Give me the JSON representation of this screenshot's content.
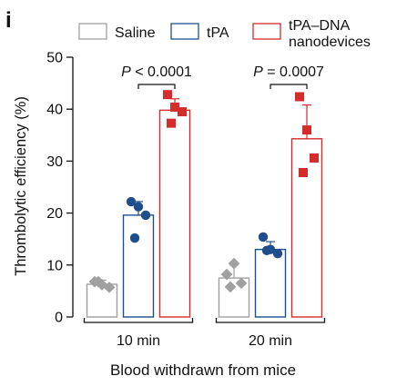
{
  "panel_label": "i",
  "chart_data": {
    "type": "bar",
    "categories": [
      "10 min",
      "20 min"
    ],
    "xlabel": "Blood withdrawn from mice",
    "ylabel": "Thrombolytic efficiency (%)",
    "ylim": [
      0,
      50
    ],
    "yticks": [
      0,
      10,
      20,
      30,
      40,
      50
    ],
    "legend_position": "top",
    "series": [
      {
        "name": "Saline",
        "color": "#a0a0a0",
        "marker": "diamond",
        "values": [
          6.3,
          7.5
        ],
        "errors": [
          0.8,
          2.5
        ],
        "points": [
          [
            6.8,
            6.2,
            5.7,
            6.8
          ],
          [
            8.2,
            10.3,
            6.5,
            5.8
          ]
        ]
      },
      {
        "name": "tPA",
        "color": "#1f4e8c",
        "marker": "circle",
        "values": [
          19.6,
          13.0
        ],
        "errors": [
          2.6,
          1.5
        ],
        "points": [
          [
            22.2,
            21.2,
            19.6,
            15.2
          ],
          [
            15.4,
            13.0,
            12.2,
            12.8
          ]
        ]
      },
      {
        "name": "tPA–DNA nanodevices",
        "color": "#d52b2b",
        "marker": "square",
        "values": [
          39.8,
          34.3
        ],
        "errors": [
          2.2,
          6.5
        ],
        "points": [
          [
            42.8,
            40.4,
            39.5,
            37.3
          ],
          [
            42.4,
            36.0,
            30.6,
            27.8
          ]
        ]
      }
    ],
    "annotations": [
      {
        "category": "10 min",
        "label_prefix": "P",
        "label_rest": " < 0.0001"
      },
      {
        "category": "20 min",
        "label_prefix": "P",
        "label_rest": " = 0.0007"
      }
    ]
  }
}
